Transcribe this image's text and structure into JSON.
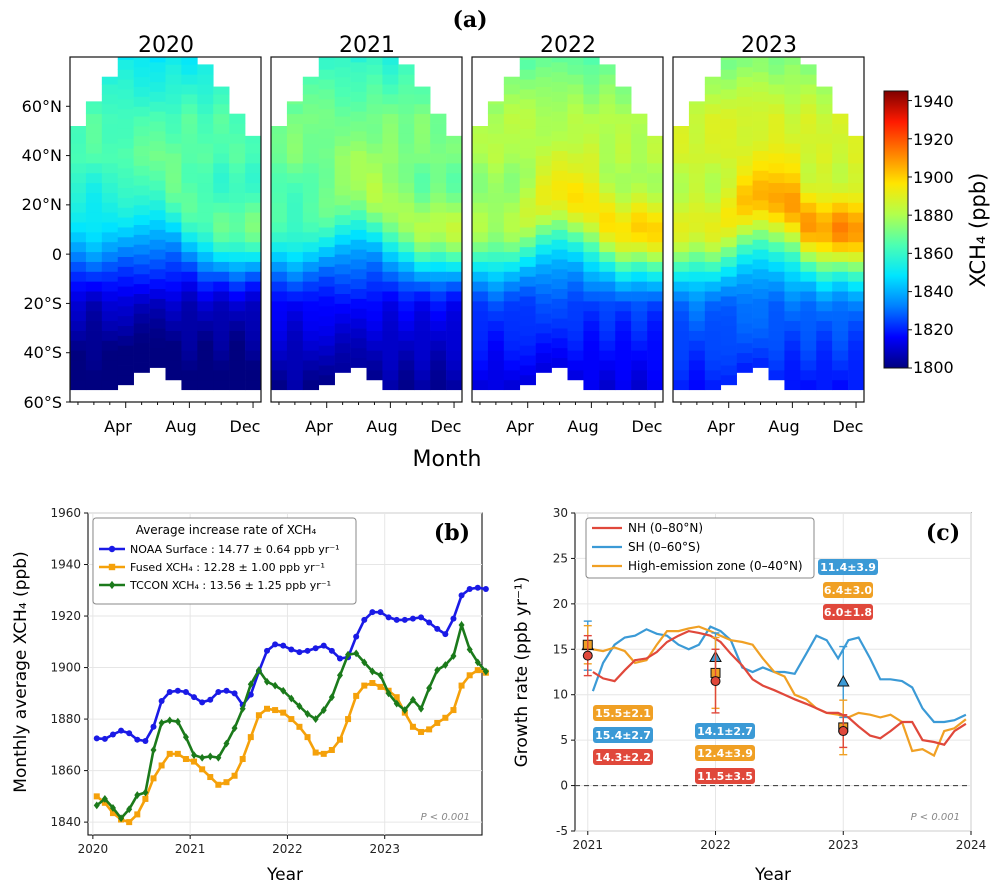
{
  "panel_a": {
    "label": "(a)",
    "years": [
      "2020",
      "2021",
      "2022",
      "2023"
    ],
    "lat_ticks": [
      "60°N",
      "40°N",
      "20°N",
      "0",
      "20°S",
      "40°S",
      "60°S"
    ],
    "month_ticks": [
      "Apr",
      "Aug",
      "Dec"
    ],
    "xlabel": "Month",
    "colorbar": {
      "label": "XCH₄ (ppb)",
      "ticks": [
        "1800",
        "1820",
        "1840",
        "1860",
        "1880",
        "1900",
        "1920",
        "1940"
      ],
      "min": 1800,
      "max": 1945,
      "colors": [
        "#00007f",
        "#0000ff",
        "#007fff",
        "#00e5ff",
        "#4cffb2",
        "#b2ff4c",
        "#ffe500",
        "#ff7f00",
        "#ff1a00",
        "#7f0000"
      ]
    }
  },
  "panel_b": {
    "label": "(b)",
    "legend_title": "Average increase rate of XCH₄",
    "note": "P < 0.001",
    "ylabel": "Monthly average XCH₄ (ppb)",
    "xlabel": "Year",
    "colors": {
      "noaa": "#1a1ae6",
      "fused": "#f5a10a",
      "tccon": "#1b7a1b"
    }
  },
  "panel_c": {
    "label": "(c)",
    "note": "P < 0.001",
    "ylabel": "Growth rate (ppb yr⁻¹)",
    "xlabel": "Year",
    "colors": {
      "nh": "#e0483b",
      "sh": "#3b9ad6",
      "hez": "#f0a024"
    },
    "annotations": {
      "y2021": {
        "hez": "15.5±2.1",
        "sh": "15.4±2.7",
        "nh": "14.3±2.2"
      },
      "y2022": {
        "sh": "14.1±2.7",
        "hez": "12.4±3.9",
        "nh": "11.5±3.5"
      },
      "y2023": {
        "sh": "11.4±3.9",
        "hez": "6.4±3.0",
        "nh": "6.0±1.8"
      }
    }
  },
  "chart_data": [
    {
      "type": "heatmap",
      "title": "2020 / 2021 / 2022 / 2023",
      "xlabel": "Month",
      "ylabel": "",
      "x_ticks": [
        "Apr",
        "Aug",
        "Dec"
      ],
      "y_ticks": [
        "60°N",
        "40°N",
        "20°N",
        "0",
        "20°S",
        "40°S",
        "60°S"
      ],
      "ylim": [
        -60,
        80
      ],
      "colorbar_label": "XCH₄ (ppb)",
      "colorbar_range": [
        1800,
        1945
      ],
      "panels": [
        "2020",
        "2021",
        "2022",
        "2023"
      ]
    },
    {
      "type": "line",
      "xlabel": "Year",
      "ylabel": "Monthly average XCH₄ (ppb)",
      "xlim": [
        2019.95,
        2024.0
      ],
      "ylim": [
        1835,
        1960
      ],
      "x_ticks": [
        "2020",
        "2021",
        "2022",
        "2023"
      ],
      "y_ticks": [
        1840,
        1860,
        1880,
        1900,
        1920,
        1940,
        1960
      ],
      "legend_title": "Average increase rate of XCH₄",
      "legend_position": "top-left",
      "series": [
        {
          "name": "NOAA Surface : 14.77 ± 0.64 ppb yr⁻¹",
          "marker": "circle",
          "values": [
            1872.5,
            1872.3,
            1874.0,
            1875.5,
            1874.5,
            1872.0,
            1871.5,
            1877.0,
            1887.0,
            1890.5,
            1891.0,
            1890.5,
            1888.5,
            1886.5,
            1887.5,
            1890.5,
            1891.0,
            1890.0,
            1885.5,
            1889.5,
            1898.5,
            1906.5,
            1909.0,
            1908.5,
            1907.0,
            1906.0,
            1906.5,
            1907.5,
            1908.5,
            1906.5,
            1903.5,
            1904.0,
            1912.0,
            1918.5,
            1921.5,
            1921.5,
            1919.5,
            1918.5,
            1918.5,
            1919.0,
            1919.5,
            1917.5,
            1915.0,
            1913.0,
            1919.0,
            1928.0,
            1930.5,
            1931.0,
            1930.5
          ]
        },
        {
          "name": "Fused XCH₄ : 12.28 ± 1.00 ppb yr⁻¹",
          "marker": "square",
          "values": [
            1850.0,
            1847.5,
            1843.5,
            1841.0,
            1840.0,
            1843.0,
            1849.0,
            1857.0,
            1862.0,
            1866.5,
            1866.5,
            1864.5,
            1863.5,
            1860.5,
            1857.5,
            1854.5,
            1855.5,
            1858.0,
            1864.5,
            1873.0,
            1881.5,
            1884.0,
            1883.5,
            1882.5,
            1880.0,
            1877.0,
            1873.0,
            1867.0,
            1866.5,
            1868.0,
            1872.0,
            1880.0,
            1889.0,
            1893.0,
            1894.0,
            1892.5,
            1891.0,
            1888.5,
            1882.5,
            1877.0,
            1875.0,
            1876.0,
            1878.5,
            1880.5,
            1883.5,
            1893.0,
            1897.0,
            1899.0,
            1898.0
          ]
        },
        {
          "name": "TCCON XCH₄ : 13.56 ± 1.25 ppb yr⁻¹",
          "marker": "diamond",
          "values": [
            1846.5,
            1849.0,
            1845.5,
            1841.5,
            1845.0,
            1850.5,
            1851.5,
            1868.0,
            1878.5,
            1879.5,
            1879.0,
            1873.0,
            1866.0,
            1865.0,
            1865.5,
            1865.0,
            1870.5,
            1876.5,
            1884.0,
            1893.5,
            1899.0,
            1894.5,
            1893.0,
            1891.0,
            1888.0,
            1885.0,
            1882.0,
            1880.0,
            1883.5,
            1888.5,
            1897.0,
            1905.0,
            1905.5,
            1902.0,
            1898.5,
            1897.0,
            1890.0,
            1886.0,
            1883.5,
            1887.5,
            1884.0,
            1892.0,
            1899.0,
            1901.0,
            1904.5,
            1916.5,
            1907.0,
            1902.0,
            1898.5
          ]
        }
      ]
    },
    {
      "type": "line",
      "xlabel": "Year",
      "ylabel": "Growth rate (ppb yr⁻¹)",
      "xlim": [
        2020.9,
        2024.0
      ],
      "ylim": [
        -5,
        30
      ],
      "x_ticks": [
        2021,
        2022,
        2023,
        2024
      ],
      "y_ticks": [
        -5,
        0,
        5,
        10,
        15,
        20,
        25,
        30
      ],
      "legend_position": "top-left",
      "series": [
        {
          "name": "NH (0–80°N)",
          "x": [
            2021.04,
            2021.12,
            2021.21,
            2021.29,
            2021.37,
            2021.46,
            2021.54,
            2021.62,
            2021.71,
            2021.79,
            2021.87,
            2021.96,
            2022.04,
            2022.12,
            2022.21,
            2022.29,
            2022.37,
            2022.46,
            2022.54,
            2022.62,
            2022.71,
            2022.79,
            2022.87,
            2022.96,
            2023.04,
            2023.12,
            2023.21,
            2023.29,
            2023.37,
            2023.46,
            2023.54,
            2023.62,
            2023.71,
            2023.79,
            2023.87,
            2023.96
          ],
          "values": [
            12.5,
            11.8,
            11.5,
            12.7,
            13.8,
            14.0,
            14.7,
            15.8,
            16.5,
            17.0,
            16.8,
            16.5,
            15.8,
            14.5,
            13.2,
            11.7,
            11.0,
            10.5,
            10.0,
            9.5,
            9.0,
            8.5,
            8.0,
            8.0,
            7.5,
            6.5,
            5.5,
            5.2,
            6.0,
            7.0,
            7.0,
            5.0,
            4.8,
            4.5,
            6.0,
            6.8
          ]
        },
        {
          "name": "SH (0–60°S)",
          "x": [
            2021.04,
            2021.12,
            2021.21,
            2021.29,
            2021.37,
            2021.46,
            2021.54,
            2021.62,
            2021.71,
            2021.79,
            2021.87,
            2021.96,
            2022.04,
            2022.12,
            2022.21,
            2022.29,
            2022.37,
            2022.46,
            2022.54,
            2022.62,
            2022.71,
            2022.79,
            2022.87,
            2022.96,
            2023.04,
            2023.12,
            2023.21,
            2023.29,
            2023.37,
            2023.46,
            2023.54,
            2023.62,
            2023.71,
            2023.79,
            2023.87,
            2023.96
          ],
          "values": [
            10.4,
            13.5,
            15.5,
            16.3,
            16.5,
            17.2,
            16.7,
            16.5,
            15.5,
            15.0,
            15.5,
            17.5,
            17.0,
            16.0,
            13.0,
            12.5,
            13.0,
            12.5,
            12.5,
            12.3,
            14.5,
            16.5,
            16.0,
            14.0,
            16.0,
            16.3,
            14.0,
            11.7,
            11.7,
            11.5,
            10.8,
            8.5,
            7.0,
            7.0,
            7.2,
            7.8
          ]
        },
        {
          "name": "High-emission zone (0–40°N)",
          "x": [
            2021.04,
            2021.12,
            2021.21,
            2021.29,
            2021.37,
            2021.46,
            2021.54,
            2021.62,
            2021.71,
            2021.79,
            2021.87,
            2021.96,
            2022.04,
            2022.12,
            2022.21,
            2022.29,
            2022.37,
            2022.46,
            2022.54,
            2022.62,
            2022.71,
            2022.79,
            2022.87,
            2022.96,
            2023.04,
            2023.12,
            2023.21,
            2023.29,
            2023.37,
            2023.46,
            2023.54,
            2023.62,
            2023.71,
            2023.79,
            2023.87,
            2023.96
          ],
          "values": [
            15.0,
            14.8,
            15.2,
            14.8,
            13.5,
            13.8,
            15.5,
            17.0,
            17.0,
            17.3,
            17.5,
            17.0,
            16.5,
            16.0,
            15.8,
            15.5,
            14.0,
            12.5,
            12.0,
            10.0,
            9.5,
            8.5,
            8.0,
            7.8,
            7.5,
            8.0,
            7.8,
            7.5,
            7.8,
            7.0,
            3.8,
            4.0,
            3.3,
            6.0,
            6.3,
            7.3
          ]
        }
      ],
      "points": {
        "x": [
          2021,
          2022,
          2023
        ],
        "NH (0–80°N)": [
          14.3,
          11.5,
          6.0
        ],
        "SH (0–60°S)": [
          15.4,
          14.1,
          11.4
        ],
        "High-emission zone (0–40°N)": [
          15.5,
          12.4,
          6.4
        ]
      }
    }
  ]
}
